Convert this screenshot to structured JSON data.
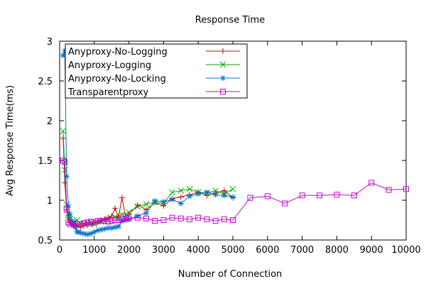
{
  "chart_data": {
    "type": "line",
    "title": "Response Time",
    "xlabel": "Number of Connection",
    "ylabel": "Avg Response Time(ms)",
    "xlim": [
      0,
      10000
    ],
    "ylim": [
      0.5,
      3
    ],
    "xticks": [
      "0",
      "1000",
      "2000",
      "3000",
      "4000",
      "5000",
      "6000",
      "7000",
      "8000",
      "9000",
      "10000"
    ],
    "yticks": [
      "0.5",
      "1",
      "1.5",
      "2",
      "2.5",
      "3"
    ],
    "grid": false,
    "legend_position": "top-left",
    "series": [
      {
        "name": "Anyproxy-No-Logging",
        "color": "#cc0000",
        "marker": "plus",
        "x": [
          100,
          150,
          200,
          250,
          300,
          350,
          400,
          450,
          500,
          600,
          700,
          800,
          900,
          1000,
          1100,
          1200,
          1300,
          1400,
          1500,
          1600,
          1700,
          1800,
          1900,
          2000,
          2250,
          2500,
          2750,
          3000,
          3250,
          3500,
          3750,
          4000,
          4250,
          4500,
          4750,
          5000
        ],
        "y": [
          1.78,
          1.22,
          0.88,
          0.78,
          0.72,
          0.7,
          0.69,
          0.7,
          0.68,
          0.66,
          0.68,
          0.69,
          0.7,
          0.72,
          0.73,
          0.75,
          0.76,
          0.78,
          0.8,
          0.9,
          0.79,
          1.03,
          0.8,
          0.82,
          0.94,
          0.88,
          0.97,
          0.93,
          1.02,
          1.04,
          1.07,
          1.1,
          1.06,
          1.09,
          1.12,
          1.03
        ]
      },
      {
        "name": "Anyproxy-Logging",
        "color": "#00aa00",
        "marker": "x",
        "x": [
          100,
          150,
          200,
          250,
          300,
          350,
          400,
          500,
          600,
          700,
          800,
          900,
          1000,
          1200,
          1400,
          1600,
          1800,
          2000,
          2250,
          2500,
          2750,
          3000,
          3250,
          3500,
          3750,
          4000,
          4250,
          4500,
          4750,
          5000
        ],
        "y": [
          1.87,
          1.38,
          0.95,
          0.83,
          0.76,
          0.72,
          0.72,
          0.75,
          0.71,
          0.7,
          0.72,
          0.7,
          0.7,
          0.73,
          0.76,
          0.79,
          0.82,
          0.85,
          0.92,
          0.95,
          0.97,
          0.96,
          1.1,
          1.12,
          1.14,
          1.1,
          1.09,
          1.12,
          1.08,
          1.14
        ]
      },
      {
        "name": "Anyproxy-No-Locking",
        "color": "#0070d0",
        "marker": "star",
        "x": [
          100,
          150,
          200,
          250,
          300,
          350,
          400,
          450,
          500,
          550,
          600,
          700,
          800,
          900,
          1000,
          1100,
          1200,
          1300,
          1400,
          1500,
          1600,
          1700,
          1800,
          1900,
          2000,
          2250,
          2500,
          2750,
          3000,
          3250,
          3500,
          3750,
          4000,
          4250,
          4500,
          4750,
          5000
        ],
        "y": [
          2.82,
          2.88,
          1.3,
          0.93,
          0.82,
          0.74,
          0.68,
          0.66,
          0.6,
          0.6,
          0.59,
          0.58,
          0.57,
          0.58,
          0.6,
          0.62,
          0.63,
          0.64,
          0.65,
          0.65,
          0.66,
          0.67,
          0.74,
          0.75,
          0.76,
          0.8,
          0.84,
          0.99,
          0.98,
          1.01,
          0.96,
          1.05,
          1.08,
          1.1,
          1.07,
          1.06,
          1.04
        ]
      },
      {
        "name": "Transparentproxy",
        "color": "#cc00cc",
        "marker": "square",
        "x": [
          100,
          150,
          200,
          250,
          300,
          400,
          500,
          600,
          700,
          800,
          900,
          1000,
          1100,
          1200,
          1300,
          1400,
          1500,
          1600,
          1700,
          1800,
          1900,
          2000,
          2250,
          2500,
          2750,
          3000,
          3250,
          3500,
          3750,
          4000,
          4250,
          4500,
          4750,
          5000,
          5500,
          6000,
          6500,
          7000,
          7500,
          8000,
          8500,
          9000,
          9500,
          10000
        ],
        "y": [
          1.5,
          1.48,
          0.88,
          0.72,
          0.7,
          0.7,
          0.7,
          0.7,
          0.71,
          0.72,
          0.73,
          0.72,
          0.74,
          0.74,
          0.74,
          0.73,
          0.74,
          0.75,
          0.75,
          0.76,
          0.77,
          0.77,
          0.78,
          0.77,
          0.74,
          0.75,
          0.78,
          0.77,
          0.76,
          0.78,
          0.76,
          0.74,
          0.76,
          0.75,
          1.03,
          1.05,
          0.96,
          1.06,
          1.06,
          1.07,
          1.06,
          1.22,
          1.13,
          1.14
        ]
      }
    ]
  }
}
